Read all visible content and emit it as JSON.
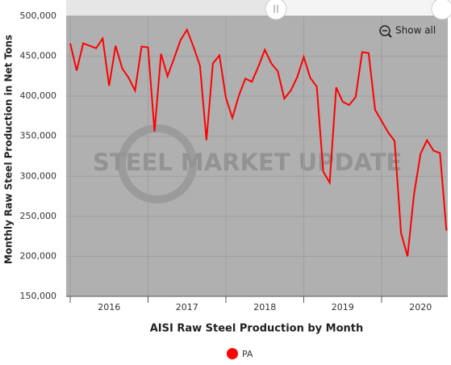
{
  "chart_data": {
    "type": "line",
    "x_label": "AISI Raw Steel Production by Month",
    "y_label": "Monthly Raw Steel Production in Net Tons",
    "watermark": "STEEL MARKET UPDATE",
    "button": "Show all",
    "legend": "bottom",
    "grid": true,
    "x": [
      2016,
      2016.083,
      2016.167,
      2016.25,
      2016.333,
      2016.417,
      2016.5,
      2016.583,
      2016.667,
      2016.75,
      2016.833,
      2016.917,
      2017,
      2017.083,
      2017.167,
      2017.25,
      2017.333,
      2017.417,
      2017.5,
      2017.583,
      2017.667,
      2017.75,
      2017.833,
      2017.917,
      2018,
      2018.083,
      2018.167,
      2018.25,
      2018.333,
      2018.417,
      2018.5,
      2018.583,
      2018.667,
      2018.75,
      2018.833,
      2018.917,
      2019,
      2019.083,
      2019.167,
      2019.25,
      2019.333,
      2019.417,
      2019.5,
      2019.583,
      2019.667,
      2019.75,
      2019.833,
      2019.917,
      2020,
      2020.083,
      2020.167,
      2020.25,
      2020.333,
      2020.417,
      2020.5,
      2020.583,
      2020.667,
      2020.75,
      2020.833
    ],
    "series": [
      {
        "name": "PA",
        "color": "#ff0000",
        "values": [
          466000,
          432000,
          466000,
          463000,
          460000,
          472000,
          413000,
          463000,
          435000,
          423000,
          407000,
          462000,
          461000,
          356000,
          453000,
          425000,
          447000,
          470000,
          483000,
          462000,
          438000,
          345000,
          441000,
          451000,
          398000,
          373000,
          401000,
          422000,
          418000,
          437000,
          458000,
          441000,
          431000,
          397000,
          407000,
          424000,
          449000,
          423000,
          412000,
          306000,
          292000,
          411000,
          393000,
          389000,
          399000,
          455000,
          454000,
          383000,
          369000,
          355000,
          344000,
          229000,
          200000,
          278000,
          328000,
          345000,
          332000,
          329000,
          232000
        ]
      }
    ],
    "xlim": [
      2015.948,
      2020.85
    ],
    "xticks": [
      {
        "value": 2016.5,
        "label": "2016"
      },
      {
        "value": 2017.5,
        "label": "2017"
      },
      {
        "value": 2018.5,
        "label": "2018"
      },
      {
        "value": 2019.5,
        "label": "2019"
      },
      {
        "value": 2020.5,
        "label": "2020"
      }
    ],
    "xgrid": [
      2016,
      2017,
      2018,
      2019,
      2020
    ],
    "ylim": [
      150000,
      500000
    ],
    "yticks": [
      {
        "value": 150000,
        "label": "150,000"
      },
      {
        "value": 200000,
        "label": "200,000"
      },
      {
        "value": 250000,
        "label": "250,000"
      },
      {
        "value": 300000,
        "label": "300,000"
      },
      {
        "value": 350000,
        "label": "350,000"
      },
      {
        "value": 400000,
        "label": "400,000"
      },
      {
        "value": 450000,
        "label": "450,000"
      },
      {
        "value": 500000,
        "label": "500,000"
      }
    ]
  }
}
